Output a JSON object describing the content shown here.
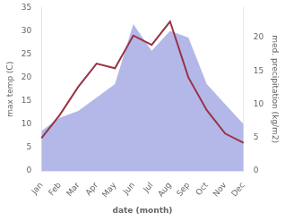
{
  "chart_data": {
    "type": "line",
    "xlabel": "date (month)",
    "ylabel": "max temp (C)",
    "y2label": "med. precipitation (kg/m2)",
    "categories": [
      "Jan",
      "Feb",
      "Mar",
      "Apr",
      "May",
      "Jun",
      "Jul",
      "Aug",
      "Sep",
      "Oct",
      "Nov",
      "Dec"
    ],
    "series": [
      {
        "type": "area",
        "color": "#b3b8e8",
        "axis": "y2",
        "values": [
          6,
          8,
          9,
          11,
          13,
          22,
          18,
          21,
          20,
          13,
          10,
          7
        ]
      },
      {
        "type": "line",
        "color": "#993344",
        "values": [
          7,
          12,
          18,
          23,
          22,
          29,
          27,
          32,
          20,
          13,
          8,
          6
        ]
      }
    ],
    "ylim": [
      0,
      35
    ],
    "yticks": [
      0,
      5,
      10,
      15,
      20,
      25,
      30,
      35
    ],
    "y2lim": [
      0,
      24.5
    ],
    "y2ticks": [
      0,
      5,
      10,
      15,
      20
    ],
    "grid": false
  }
}
